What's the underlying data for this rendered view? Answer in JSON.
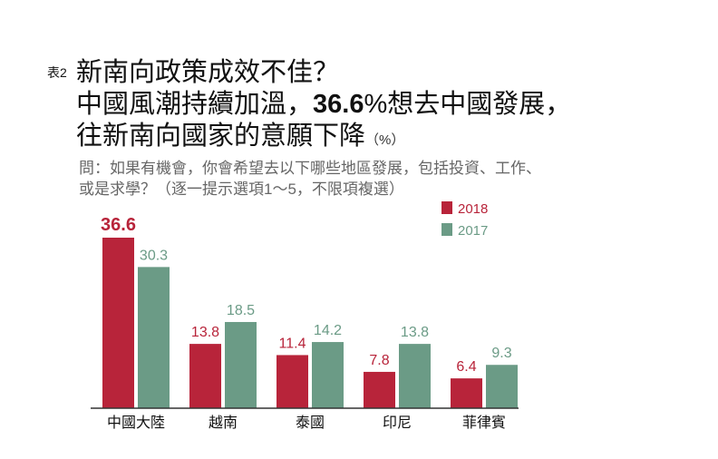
{
  "header": {
    "tag": "表2",
    "line1": "新南向政策成效不佳？",
    "line2_pre": "中國風潮持續加溫，",
    "line2_bold": "36.6",
    "line2_post": "%想去中國發展，",
    "line3": "往新南向國家的意願下降",
    "unit": "（%）",
    "question1": "問：如果有機會，你會希望去以下哪些地區發展，包括投資、工作、",
    "question2": "或是求學？（逐一提示選項1〜5，不限項複選）"
  },
  "colors": {
    "2018": "#b8243a",
    "2017": "#6b9b86"
  },
  "chart_data": {
    "type": "bar",
    "categories": [
      "中國大陸",
      "越南",
      "泰國",
      "印尼",
      "菲律賓"
    ],
    "series": [
      {
        "name": "2018",
        "values": [
          36.6,
          13.8,
          11.4,
          7.8,
          6.4
        ]
      },
      {
        "name": "2017",
        "values": [
          30.3,
          18.5,
          14.2,
          13.8,
          9.3
        ]
      }
    ],
    "ylim": [
      0,
      40
    ],
    "grid": false,
    "legend": "top-right",
    "unit": "%"
  }
}
